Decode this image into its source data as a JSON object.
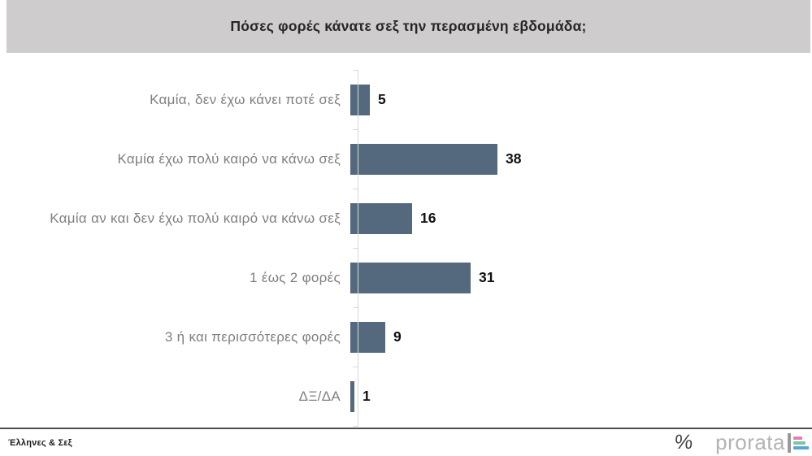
{
  "header": {
    "title": "Πόσες φορές κάνατε σεξ την περασμένη εβδομάδα;",
    "bg_color": "#cecccd"
  },
  "chart_data": {
    "type": "bar",
    "orientation": "horizontal",
    "title": "Πόσες φορές κάνατε σεξ την περασμένη εβδομάδα;",
    "categories": [
      "Καμία, δεν έχω κάνει ποτέ σεξ",
      "Καμία έχω πολύ καιρό να κάνω σεξ",
      "Καμία αν και δεν έχω πολύ καιρό να κάνω σεξ",
      "1 έως 2 φορές",
      "3 ή και περισσότερες φορές",
      "ΔΞ/ΔΑ"
    ],
    "values": [
      5,
      38,
      16,
      31,
      9,
      1
    ],
    "xlabel": "",
    "ylabel": "",
    "xlim": [
      0,
      115
    ],
    "grid": false,
    "legend": false,
    "bar_color": "#54687e",
    "category_label_color": "#7f7f7f",
    "value_label_color": "#111111",
    "axis_color": "#d9d9d9"
  },
  "footer": {
    "source_label": "Έλληνες & Σεξ",
    "brand": {
      "percent_symbol": "%",
      "name": "prorata",
      "logo_stripe_colors": [
        "#e57fb1",
        "#7cc4a8",
        "#58a7d6"
      ]
    }
  }
}
